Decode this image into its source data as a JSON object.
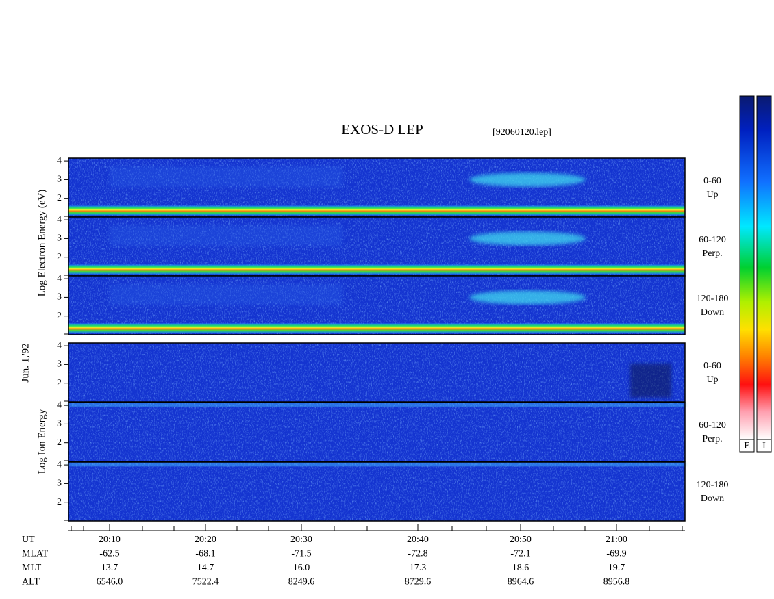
{
  "title": "EXOS-D LEP",
  "file": "[92060120.lep]",
  "ylabels": {
    "electron": "Log Electron Energy (eV)",
    "date": "Jun. 1,'92",
    "ion": "Log Ion Energy"
  },
  "panels": [
    {
      "group": "electron",
      "labels": [
        "0-60",
        "Up"
      ],
      "ylim": [
        1,
        4.15
      ],
      "yticks": [
        2,
        3,
        4
      ]
    },
    {
      "group": "electron",
      "labels": [
        "60-120",
        "Perp."
      ],
      "ylim": [
        1,
        4.15
      ],
      "yticks": [
        2,
        3,
        4
      ]
    },
    {
      "group": "electron",
      "labels": [
        "120-180",
        "Down"
      ],
      "ylim": [
        1,
        4.15
      ],
      "yticks": [
        2,
        3,
        4
      ]
    },
    {
      "group": "ion",
      "labels": [
        "0-60",
        "Up"
      ],
      "ylim": [
        1,
        4.15
      ],
      "yticks": [
        2,
        3,
        4
      ]
    },
    {
      "group": "ion",
      "labels": [
        "60-120",
        "Perp."
      ],
      "ylim": [
        1,
        4.15
      ],
      "yticks": [
        2,
        3,
        4
      ]
    },
    {
      "group": "ion",
      "labels": [
        "120-180",
        "Down"
      ],
      "ylim": [
        1,
        4.15
      ],
      "yticks": [
        2,
        3,
        4
      ]
    }
  ],
  "axis": {
    "rows": [
      "UT",
      "MLAT",
      "MLT",
      "ALT"
    ],
    "columns": [
      [
        "20:10",
        "-62.5",
        "13.7",
        "6546.0"
      ],
      [
        "20:20",
        "-68.1",
        "14.7",
        "7522.4"
      ],
      [
        "20:30",
        "-71.5",
        "16.0",
        "8249.6"
      ],
      [
        "20:40",
        "-72.8",
        "17.3",
        "8729.6"
      ],
      [
        "20:50",
        "-72.1",
        "18.6",
        "8964.6"
      ],
      [
        "21:00",
        "-69.9",
        "19.7",
        "8956.8"
      ]
    ]
  },
  "colorbars": [
    "E",
    "I"
  ]
}
